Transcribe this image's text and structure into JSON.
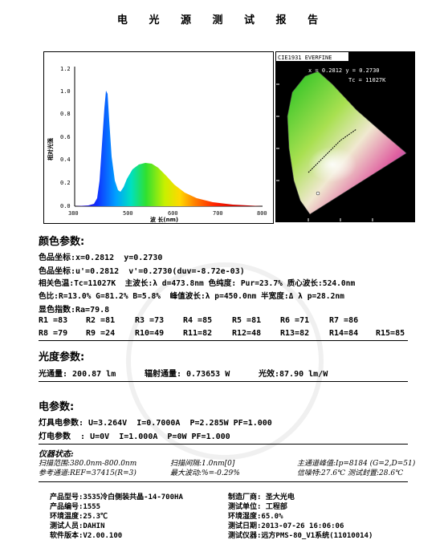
{
  "title": "电 光 源 测 试 报 告",
  "spectrum": {
    "ylabel": "相对光强",
    "xlabel": "波 长(nm)",
    "yticks": [
      "1.2",
      "1.0",
      "0.8",
      "0.6",
      "0.4",
      "0.2",
      "0.0"
    ],
    "xticks": [
      "380",
      "500",
      "600",
      "700",
      "800"
    ]
  },
  "cie": {
    "label": "CIE1931 EVERFINE",
    "coord": "x = 0.2812 y = 0.2730",
    "tc": "Tc = 11027K"
  },
  "color_params": {
    "heading": "颜色参数:",
    "l1": "色品坐标:x=0.2812  y=0.2730",
    "l2": "色品坐标:u'=0.2812  v'=0.2730(duv=-8.72e-03)",
    "l3": "相关色温:Tc=11027K  主波长:λ d=473.8nm 色纯度: Pur=23.7% 质心波长:524.0nm",
    "l4": "色比:R=13.0% G=81.2% B=5.8%  峰值波长:λ p=450.0nm 半宽度:Δ λ p=28.2nm",
    "l5": "显色指数:Ra=79.8",
    "r_row1": [
      "R1 =83",
      "R2 =81",
      "R3 =73",
      "R4 =85",
      "R5 =81",
      "R6 =71",
      "R7 =86"
    ],
    "r_row2": [
      "R8 =79",
      "R9 =24",
      "R10=49",
      "R11=82",
      "R12=48",
      "R13=82",
      "R14=84",
      "R15=85"
    ]
  },
  "photo_params": {
    "heading": "光度参数:",
    "flux": "光通量: 200.87 lm",
    "radiant": "辐射通量: 0.73653 W",
    "efficacy": "光效:87.90 lm/W"
  },
  "elec_params": {
    "heading": "电参数:",
    "lamp": "灯具电参数: U=3.264V  I=0.7000A  P=2.285W PF=1.000",
    "source": "灯电参数  : U=0V  I=1.000A  P=0W PF=1.000"
  },
  "instrument": {
    "heading": "仪器状态:",
    "range": "扫描范围:380.0nm-800.0nm",
    "interval": "扫描间隔:1.0nm[0]",
    "peak": "主通道峰值:Ip=8184 (G=2,D=51)",
    "reference": "参考通道:REF=37415(R=3)",
    "fluctuation": "最大波动:%=-0.29%",
    "temp": "信噪特:27.6℃ 测试封置:28.6℃"
  },
  "footer": {
    "model": "产品型号:3535冷白侧装共晶-14-700HA",
    "maker": "制造厂商: 圣大光电",
    "number": "产品编号:1555",
    "unit": "测试单位: 工程部",
    "temp": "环境温度:25.3℃",
    "humidity": "环境湿度:65.0%",
    "tester": "测试人员:DAHIN",
    "date": "测试日期:2013-07-26 16:06:06",
    "version": "软件版本:V2.00.100",
    "device": "测试仪器:远方PMS-80_V1系统(11010014)"
  }
}
